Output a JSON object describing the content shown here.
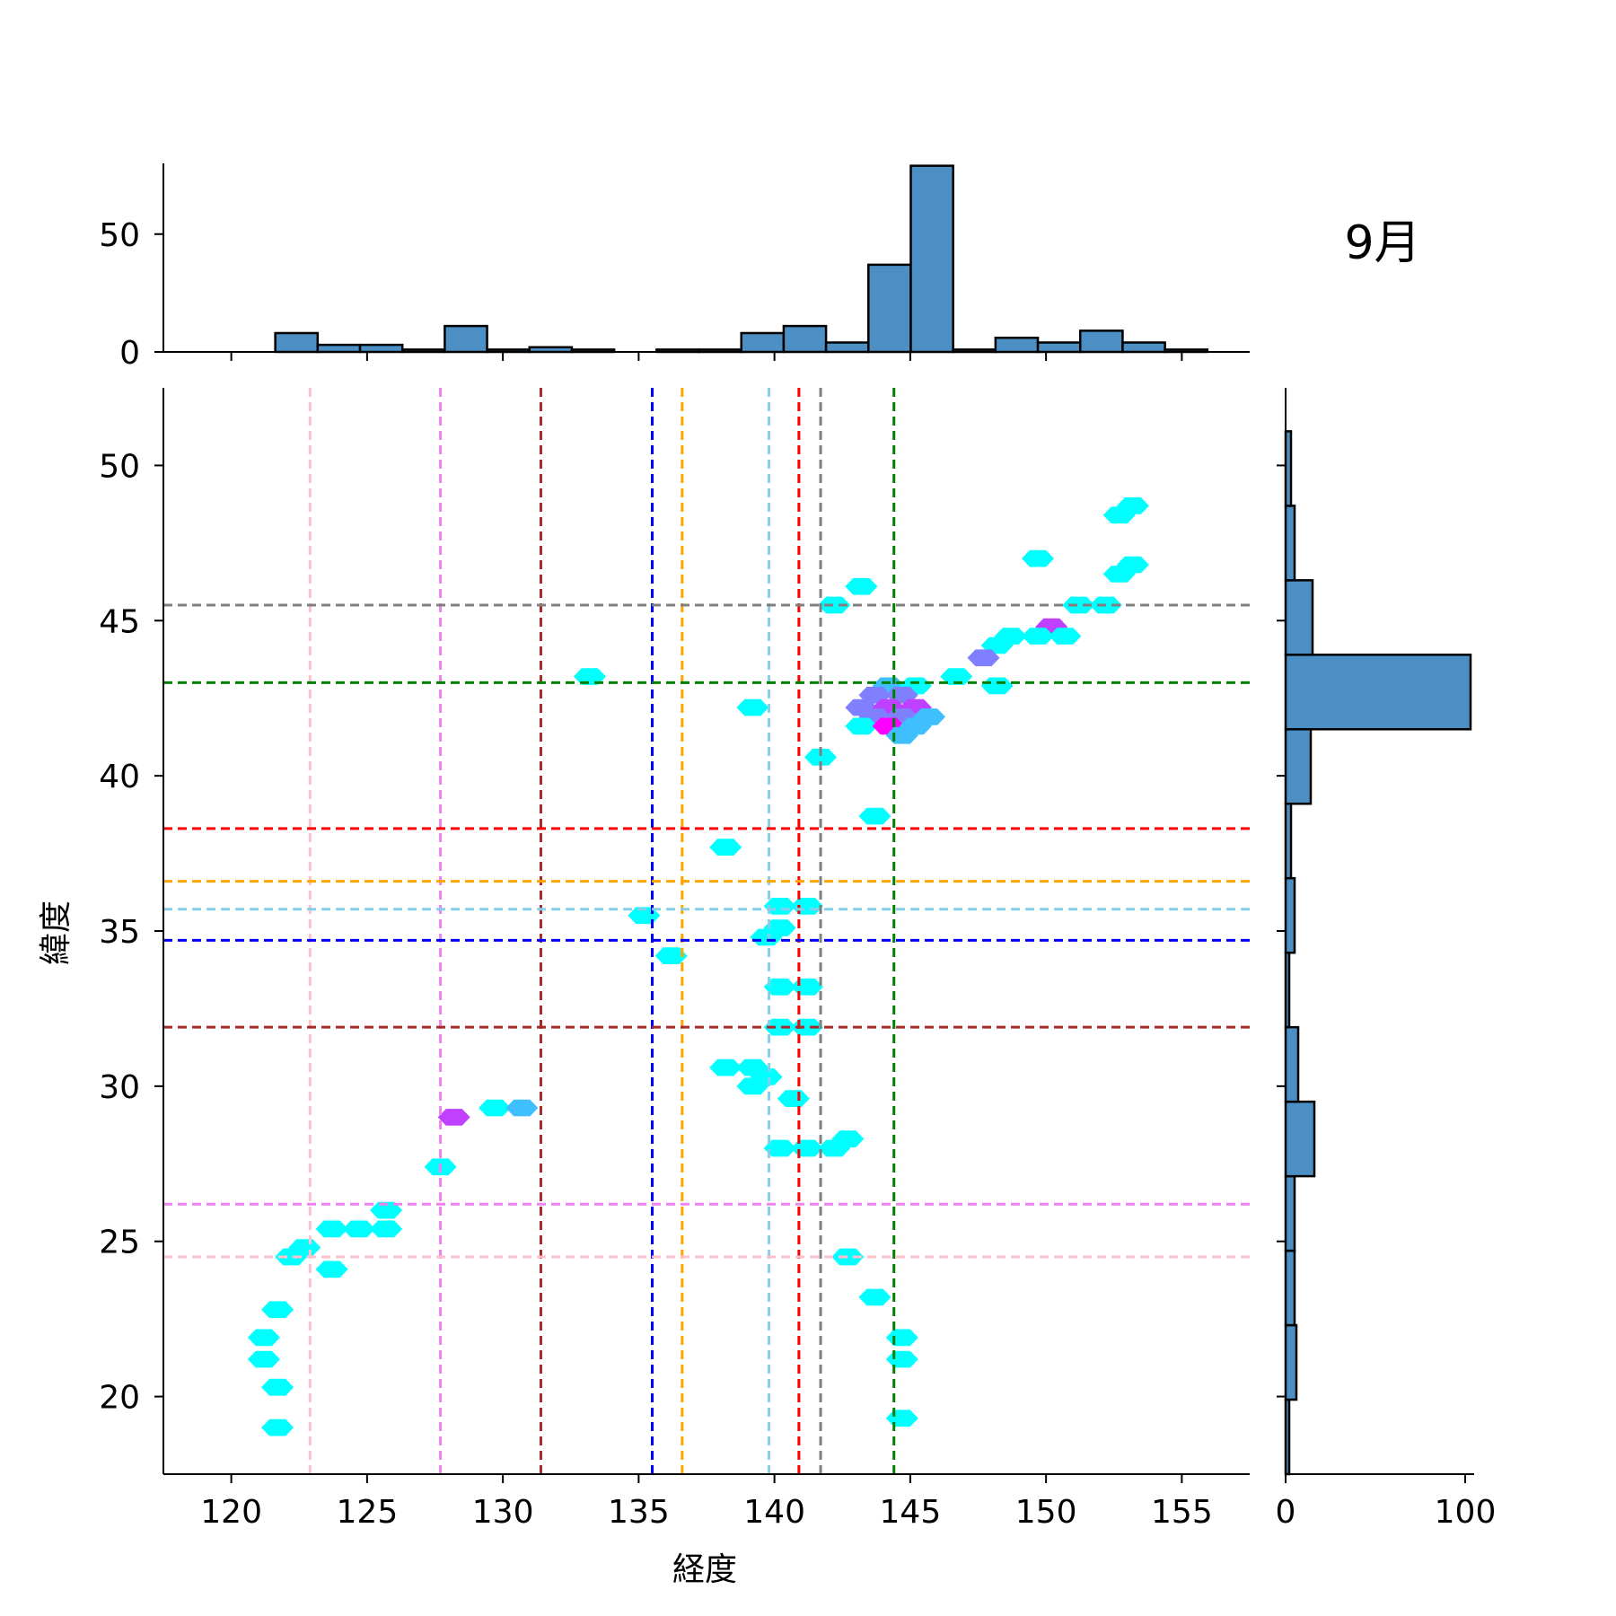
{
  "chart_data": {
    "type": "hexbin-jointplot",
    "title": "9月",
    "xlabel": "経度",
    "ylabel": "緯度",
    "xlim": [
      117.5,
      157.5
    ],
    "ylim": [
      17.5,
      52.5
    ],
    "xticks": [
      120,
      125,
      130,
      135,
      140,
      145,
      150,
      155
    ],
    "yticks": [
      20,
      25,
      30,
      35,
      40,
      45,
      50
    ],
    "top_hist": {
      "ylim": [
        0,
        80
      ],
      "yticks": [
        0,
        50
      ],
      "bin_edges": [
        118.5,
        120.06,
        121.62,
        123.18,
        124.74,
        126.3,
        127.86,
        129.42,
        130.98,
        132.54,
        134.1,
        135.66,
        137.22,
        138.78,
        140.34,
        141.9,
        143.46,
        145.02,
        146.58,
        148.14,
        149.7,
        151.26,
        152.82,
        154.38,
        155.94,
        157.5
      ],
      "counts": [
        0,
        0,
        8,
        3,
        3,
        1,
        11,
        1,
        2,
        1,
        0,
        1,
        1,
        8,
        11,
        4,
        37,
        79,
        1,
        6,
        4,
        9,
        4,
        1,
        0
      ]
    },
    "right_hist": {
      "xlim": [
        0,
        105
      ],
      "xticks": [
        0,
        100
      ],
      "bin_edges": [
        17.5,
        19.9,
        22.3,
        24.7,
        27.1,
        29.5,
        31.9,
        34.3,
        36.7,
        39.1,
        41.5,
        43.9,
        46.3,
        48.7,
        51.1
      ],
      "counts": [
        2,
        6,
        5,
        5,
        16,
        7,
        2,
        5,
        3,
        14,
        103,
        15,
        5,
        3
      ]
    },
    "vertical_lines": [
      {
        "x": 122.9,
        "color": "#ffc0cb"
      },
      {
        "x": 127.7,
        "color": "#ee82ee"
      },
      {
        "x": 131.4,
        "color": "#a52a2a"
      },
      {
        "x": 135.5,
        "color": "#0000ff"
      },
      {
        "x": 136.6,
        "color": "#ffa500"
      },
      {
        "x": 139.8,
        "color": "#87ceeb"
      },
      {
        "x": 140.9,
        "color": "#ff0000"
      },
      {
        "x": 141.7,
        "color": "#808080"
      },
      {
        "x": 144.4,
        "color": "#008000"
      }
    ],
    "horizontal_lines": [
      {
        "y": 45.5,
        "color": "#808080"
      },
      {
        "y": 43.0,
        "color": "#008000"
      },
      {
        "y": 38.3,
        "color": "#ff0000"
      },
      {
        "y": 36.6,
        "color": "#ffa500"
      },
      {
        "y": 35.7,
        "color": "#87ceeb"
      },
      {
        "y": 34.7,
        "color": "#0000ff"
      },
      {
        "y": 31.9,
        "color": "#a52a2a"
      },
      {
        "y": 26.2,
        "color": "#ee82ee"
      },
      {
        "y": 24.5,
        "color": "#ffc0cb"
      }
    ],
    "hexbins": [
      {
        "x": 153.2,
        "y": 48.7,
        "c": 1
      },
      {
        "x": 152.7,
        "y": 48.4,
        "c": 1
      },
      {
        "x": 149.7,
        "y": 47.0,
        "c": 1
      },
      {
        "x": 153.2,
        "y": 46.8,
        "c": 1
      },
      {
        "x": 152.7,
        "y": 46.5,
        "c": 1
      },
      {
        "x": 143.2,
        "y": 46.1,
        "c": 1
      },
      {
        "x": 142.2,
        "y": 45.5,
        "c": 1
      },
      {
        "x": 151.2,
        "y": 45.5,
        "c": 1
      },
      {
        "x": 152.2,
        "y": 45.5,
        "c": 1
      },
      {
        "x": 150.2,
        "y": 44.8,
        "c": 4
      },
      {
        "x": 148.7,
        "y": 44.5,
        "c": 1
      },
      {
        "x": 149.7,
        "y": 44.5,
        "c": 1
      },
      {
        "x": 150.7,
        "y": 44.5,
        "c": 1
      },
      {
        "x": 148.2,
        "y": 44.2,
        "c": 1
      },
      {
        "x": 147.7,
        "y": 43.8,
        "c": 3
      },
      {
        "x": 133.2,
        "y": 43.2,
        "c": 1
      },
      {
        "x": 146.7,
        "y": 43.2,
        "c": 1
      },
      {
        "x": 144.2,
        "y": 42.9,
        "c": 2
      },
      {
        "x": 145.2,
        "y": 42.9,
        "c": 1
      },
      {
        "x": 148.2,
        "y": 42.9,
        "c": 1
      },
      {
        "x": 143.7,
        "y": 42.6,
        "c": 3
      },
      {
        "x": 144.7,
        "y": 42.6,
        "c": 3
      },
      {
        "x": 139.2,
        "y": 42.2,
        "c": 1
      },
      {
        "x": 143.2,
        "y": 42.2,
        "c": 3
      },
      {
        "x": 144.2,
        "y": 42.2,
        "c": 4
      },
      {
        "x": 145.2,
        "y": 42.2,
        "c": 4
      },
      {
        "x": 143.7,
        "y": 41.9,
        "c": 3
      },
      {
        "x": 144.7,
        "y": 41.9,
        "c": 3
      },
      {
        "x": 145.7,
        "y": 41.9,
        "c": 2
      },
      {
        "x": 143.2,
        "y": 41.6,
        "c": 1
      },
      {
        "x": 144.2,
        "y": 41.6,
        "c": 5
      },
      {
        "x": 145.2,
        "y": 41.6,
        "c": 2
      },
      {
        "x": 144.7,
        "y": 41.3,
        "c": 2
      },
      {
        "x": 141.7,
        "y": 40.6,
        "c": 1
      },
      {
        "x": 143.7,
        "y": 38.7,
        "c": 1
      },
      {
        "x": 138.2,
        "y": 37.7,
        "c": 1
      },
      {
        "x": 140.2,
        "y": 35.8,
        "c": 1
      },
      {
        "x": 141.2,
        "y": 35.8,
        "c": 1
      },
      {
        "x": 135.2,
        "y": 35.5,
        "c": 1
      },
      {
        "x": 140.2,
        "y": 35.1,
        "c": 1
      },
      {
        "x": 139.7,
        "y": 34.8,
        "c": 1
      },
      {
        "x": 136.2,
        "y": 34.2,
        "c": 1
      },
      {
        "x": 140.2,
        "y": 33.2,
        "c": 1
      },
      {
        "x": 141.2,
        "y": 33.2,
        "c": 1
      },
      {
        "x": 140.2,
        "y": 31.9,
        "c": 1
      },
      {
        "x": 141.2,
        "y": 31.9,
        "c": 1
      },
      {
        "x": 138.2,
        "y": 30.6,
        "c": 1
      },
      {
        "x": 139.2,
        "y": 30.6,
        "c": 1
      },
      {
        "x": 139.7,
        "y": 30.3,
        "c": 1
      },
      {
        "x": 139.2,
        "y": 30.0,
        "c": 1
      },
      {
        "x": 140.7,
        "y": 29.6,
        "c": 1
      },
      {
        "x": 129.7,
        "y": 29.3,
        "c": 1
      },
      {
        "x": 130.7,
        "y": 29.3,
        "c": 2
      },
      {
        "x": 128.2,
        "y": 29.0,
        "c": 4
      },
      {
        "x": 142.7,
        "y": 28.3,
        "c": 1
      },
      {
        "x": 140.2,
        "y": 28.0,
        "c": 1
      },
      {
        "x": 141.2,
        "y": 28.0,
        "c": 1
      },
      {
        "x": 142.2,
        "y": 28.0,
        "c": 1
      },
      {
        "x": 127.7,
        "y": 27.4,
        "c": 1
      },
      {
        "x": 125.7,
        "y": 26.0,
        "c": 1
      },
      {
        "x": 123.7,
        "y": 25.4,
        "c": 1
      },
      {
        "x": 124.7,
        "y": 25.4,
        "c": 1
      },
      {
        "x": 125.7,
        "y": 25.4,
        "c": 1
      },
      {
        "x": 122.7,
        "y": 24.8,
        "c": 1
      },
      {
        "x": 122.2,
        "y": 24.5,
        "c": 1
      },
      {
        "x": 142.7,
        "y": 24.5,
        "c": 1
      },
      {
        "x": 123.7,
        "y": 24.1,
        "c": 1
      },
      {
        "x": 143.7,
        "y": 23.2,
        "c": 1
      },
      {
        "x": 121.7,
        "y": 22.8,
        "c": 1
      },
      {
        "x": 121.2,
        "y": 21.9,
        "c": 1
      },
      {
        "x": 144.7,
        "y": 21.9,
        "c": 1
      },
      {
        "x": 121.2,
        "y": 21.2,
        "c": 1
      },
      {
        "x": 144.7,
        "y": 21.2,
        "c": 1
      },
      {
        "x": 121.7,
        "y": 20.3,
        "c": 1
      },
      {
        "x": 144.7,
        "y": 19.3,
        "c": 1
      },
      {
        "x": 121.7,
        "y": 19.0,
        "c": 1
      }
    ],
    "hex_colormap": [
      "#00ffff",
      "#ff00ff"
    ],
    "hist_color": "#4c8fc4"
  }
}
